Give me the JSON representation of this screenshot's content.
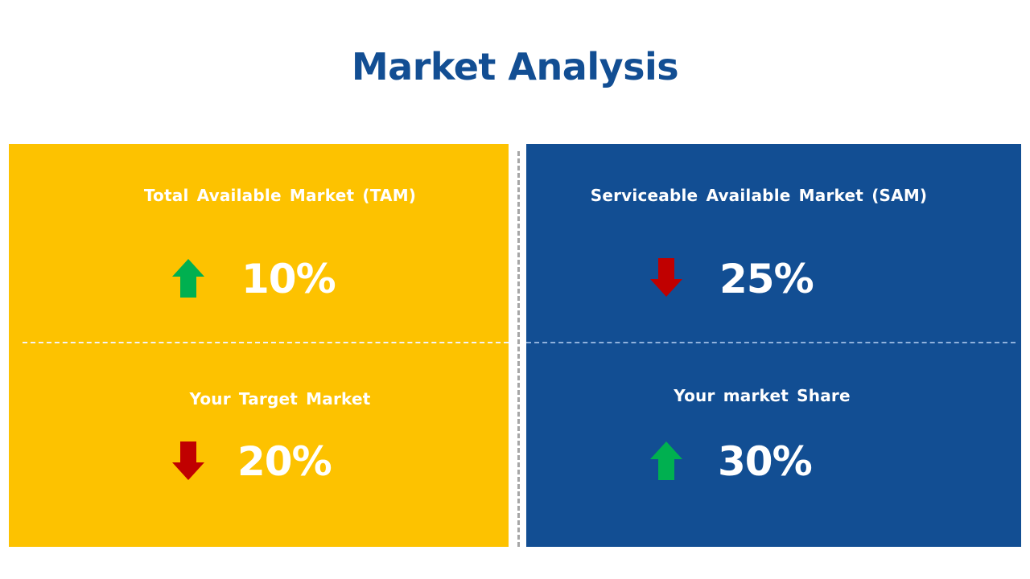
{
  "title": "Market Analysis",
  "quadrants": [
    {
      "label": "Total Available Market (TAM)",
      "value": "10%",
      "trend": "up",
      "trend_color": "#00B050",
      "panel_color": "#FDC200"
    },
    {
      "label": "Serviceable  Available  Market (SAM)",
      "value": "25%",
      "trend": "down",
      "trend_color": "#C00000",
      "panel_color": "#124E93"
    },
    {
      "label": "Your Target Market",
      "value": "20%",
      "trend": "down",
      "trend_color": "#C00000",
      "panel_color": "#FDC200"
    },
    {
      "label": "Your market Share",
      "value": "30%",
      "trend": "up",
      "trend_color": "#00B050",
      "panel_color": "#124E93"
    }
  ],
  "icons": {
    "up": "arrow-up-icon",
    "down": "arrow-down-icon"
  },
  "colors": {
    "title": "#124E93",
    "yellow": "#FDC200",
    "blue": "#124E93",
    "up": "#00B050",
    "down": "#C00000"
  }
}
